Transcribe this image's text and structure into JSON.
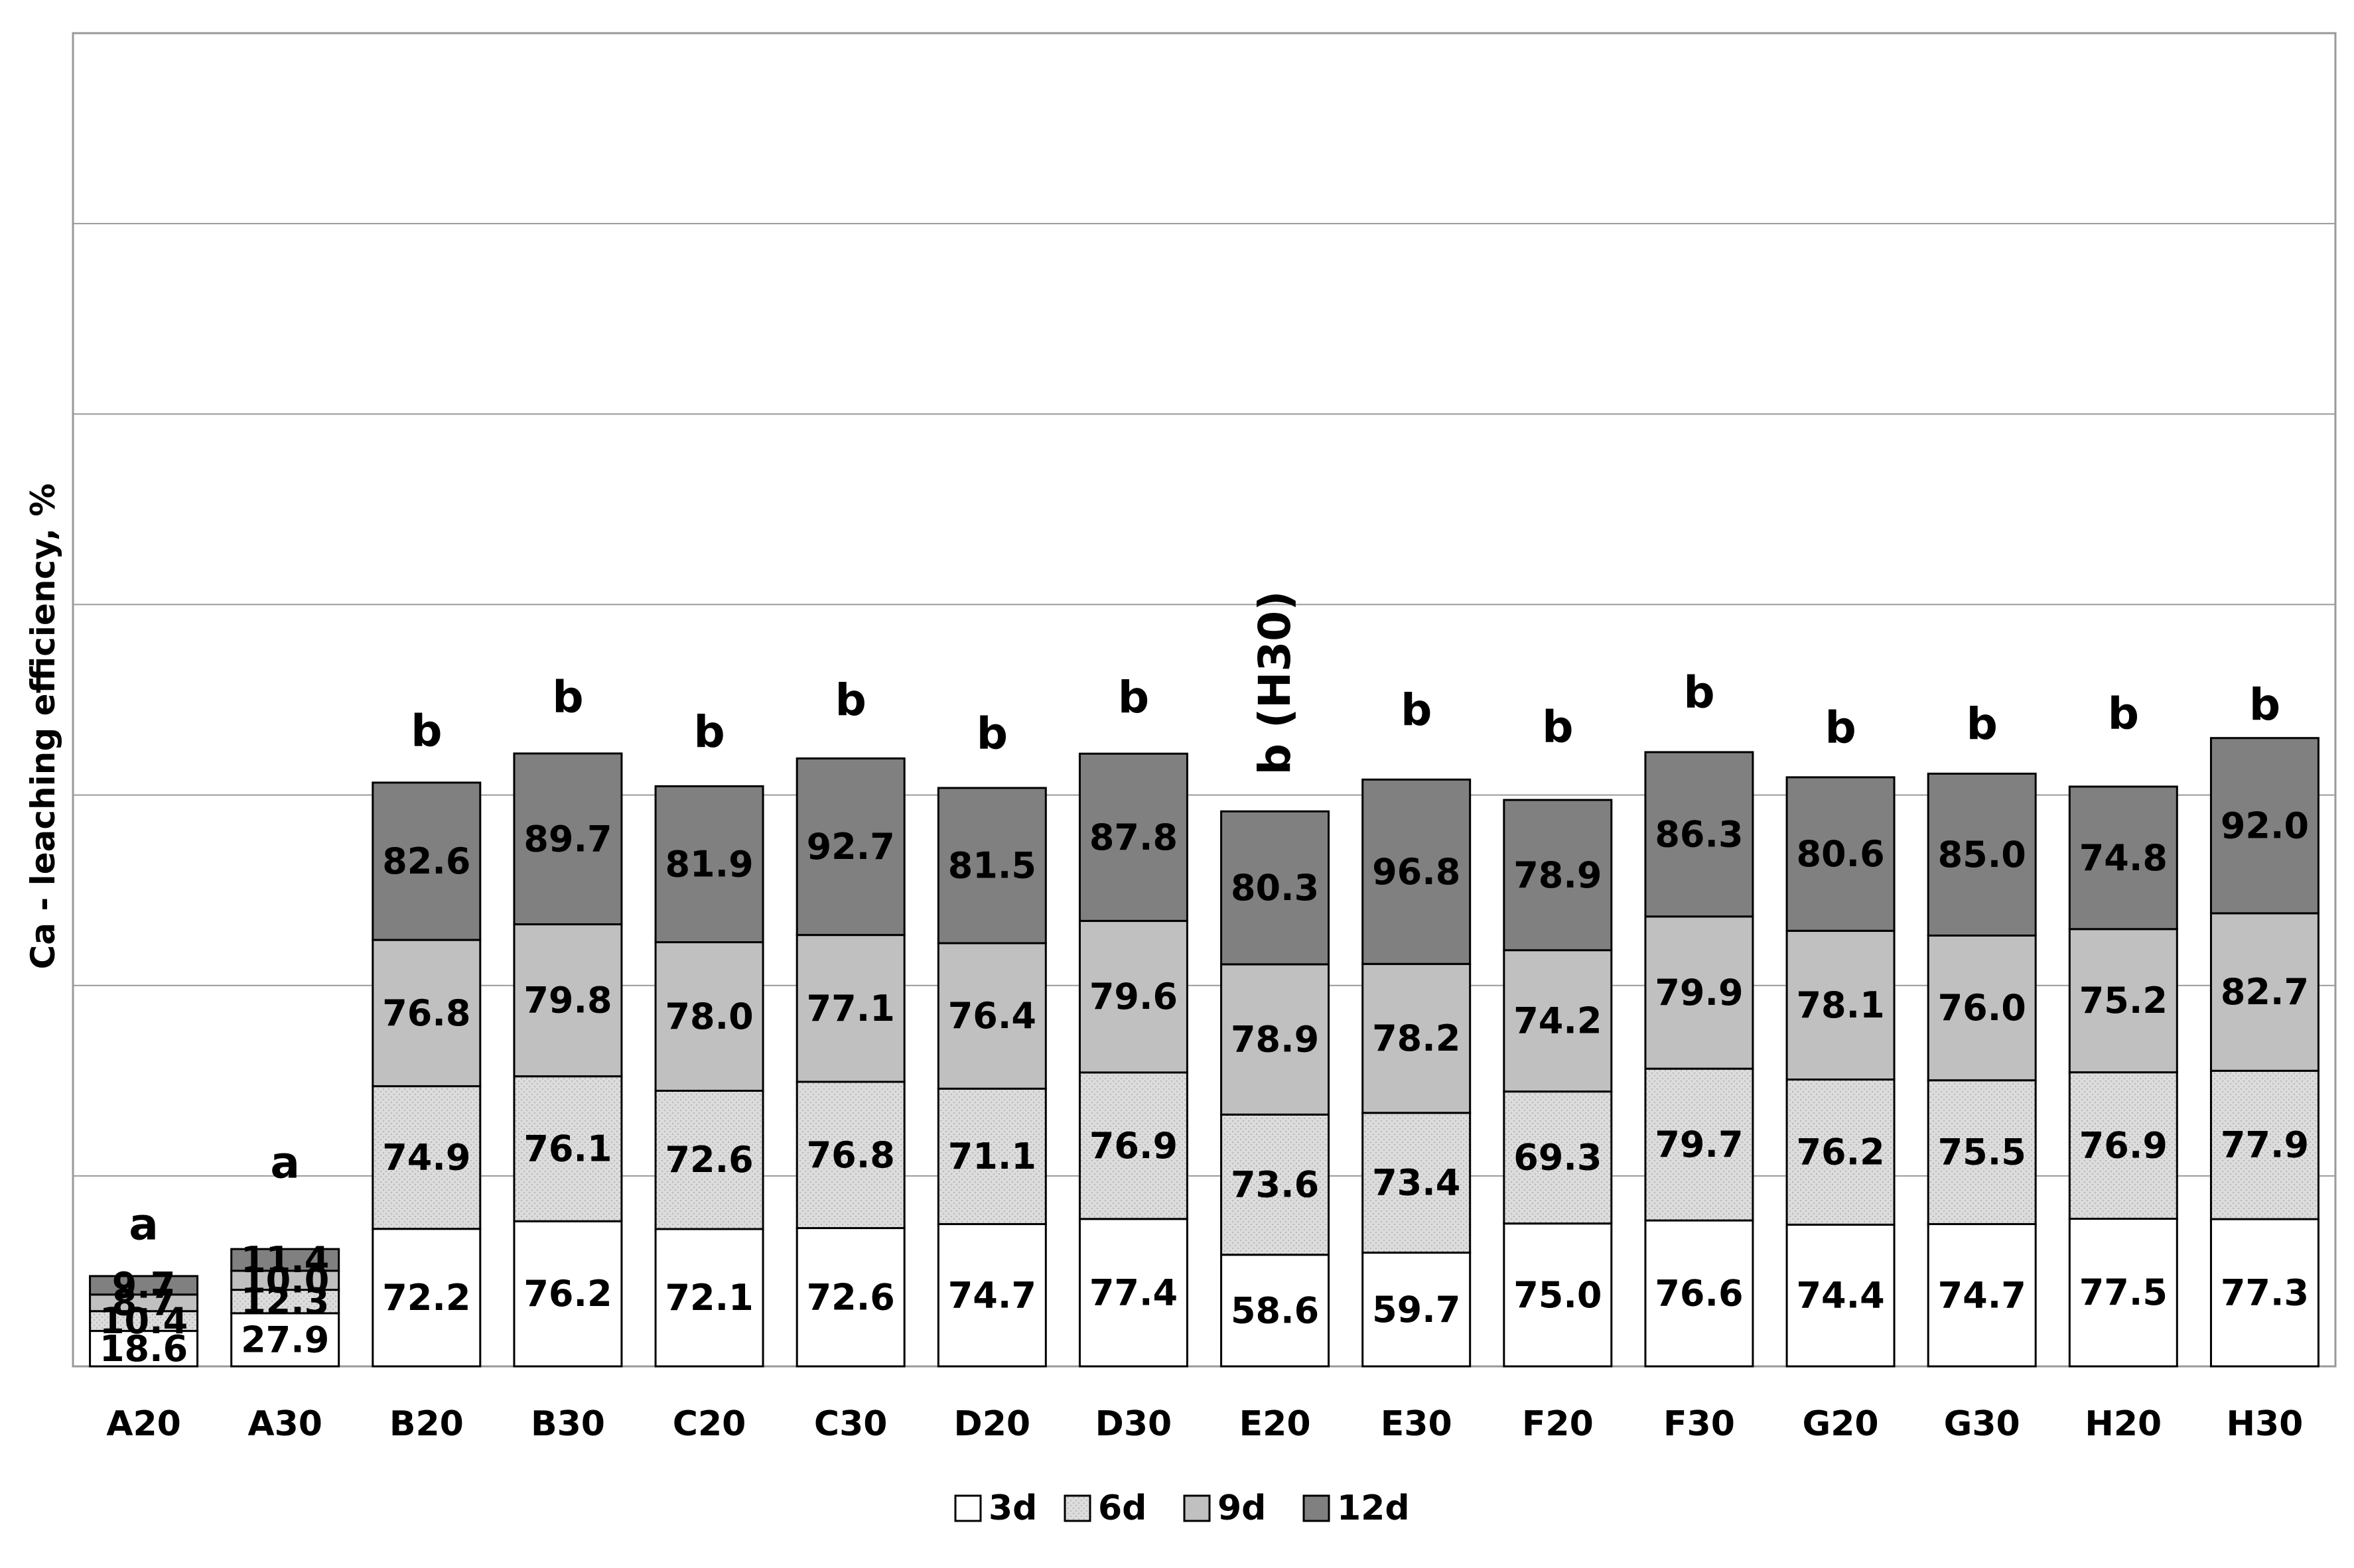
{
  "chart_data": {
    "type": "bar",
    "stacked": true,
    "ylabel": "Ca - leaching efficiency, %",
    "xlabel": "",
    "title": "",
    "ylim": [
      0,
      700
    ],
    "y_gridlines": [
      0,
      100,
      200,
      300,
      400,
      500,
      600,
      700
    ],
    "tick_labels_y_shown": false,
    "legend_position": "bottom",
    "categories": [
      "A20",
      "A30",
      "B20",
      "B30",
      "C20",
      "C30",
      "D20",
      "D30",
      "E20",
      "E30",
      "F20",
      "F30",
      "G20",
      "G30",
      "H20",
      "H30"
    ],
    "series": [
      {
        "name": "3d",
        "color": "#ffffff",
        "pattern": "none",
        "values": [
          18.6,
          27.9,
          72.2,
          76.2,
          72.1,
          72.6,
          74.7,
          77.4,
          58.6,
          59.7,
          75.0,
          76.6,
          74.4,
          74.7,
          77.5,
          77.3
        ],
        "labels": [
          "18.6",
          "27.9",
          "72.2",
          "76.2",
          "72.1",
          "72.6",
          "74.7",
          "77.4",
          "58.6",
          "59.7",
          "75.0",
          "76.6",
          "74.4",
          "74.7",
          "77.5",
          "77.3"
        ]
      },
      {
        "name": "6d",
        "color": "#dcdcdc",
        "pattern": "dots",
        "values": [
          10.4,
          12.3,
          74.9,
          76.1,
          72.6,
          76.8,
          71.1,
          76.9,
          73.6,
          73.4,
          69.3,
          79.7,
          76.2,
          75.5,
          76.9,
          77.9
        ],
        "labels": [
          "10.4",
          "12.3",
          "74.9",
          "76.1",
          "72.6",
          "76.8",
          "71.1",
          "76.9",
          "73.6",
          "73.4",
          "69.3",
          "79.7",
          "76.2",
          "75.5",
          "76.9",
          "77.9"
        ]
      },
      {
        "name": "9d",
        "color": "#c0c0c0",
        "pattern": "none",
        "values": [
          8.7,
          10.0,
          76.8,
          79.8,
          78.0,
          77.1,
          76.4,
          79.6,
          78.9,
          78.2,
          74.2,
          79.9,
          78.1,
          76.0,
          75.2,
          82.7
        ],
        "labels": [
          "8.7",
          "10.0",
          "76.8",
          "79.8",
          "78.0",
          "77.1",
          "76.4",
          "79.6",
          "78.9",
          "78.2",
          "74.2",
          "79.9",
          "78.1",
          "76.0",
          "75.2",
          "82.7"
        ]
      },
      {
        "name": "12d",
        "color": "#808080",
        "pattern": "none",
        "values": [
          9.7,
          11.4,
          82.6,
          89.7,
          81.9,
          92.7,
          81.5,
          87.8,
          80.3,
          96.8,
          78.9,
          86.3,
          80.6,
          85.0,
          74.8,
          92.0
        ],
        "labels": [
          "9.7",
          "11.4",
          "82.6",
          "89.7",
          "81.9",
          "92.7",
          "81.5",
          "87.8",
          "80.3",
          "96.8",
          "78.9",
          "86.3",
          "80.6",
          "85.0",
          "74.8",
          "92.0"
        ]
      }
    ],
    "significance_letters": [
      "a",
      "a",
      "b",
      "b",
      "b",
      "b",
      "b",
      "b",
      "b (H30)",
      "b",
      "b",
      "b",
      "b",
      "b",
      "b",
      "b"
    ],
    "significance_offsets": [
      78,
      130,
      78,
      85,
      82,
      88,
      82,
      85,
      80,
      105,
      110,
      90,
      75,
      75,
      110,
      50
    ],
    "significance_rotated": [
      false,
      false,
      false,
      false,
      false,
      false,
      false,
      false,
      true,
      false,
      false,
      false,
      false,
      false,
      false,
      false
    ],
    "legend": [
      {
        "name": "3d",
        "color": "#ffffff"
      },
      {
        "name": "6d",
        "color": "#dcdcdc"
      },
      {
        "name": "9d",
        "color": "#c0c0c0"
      },
      {
        "name": "12d",
        "color": "#808080"
      }
    ]
  }
}
